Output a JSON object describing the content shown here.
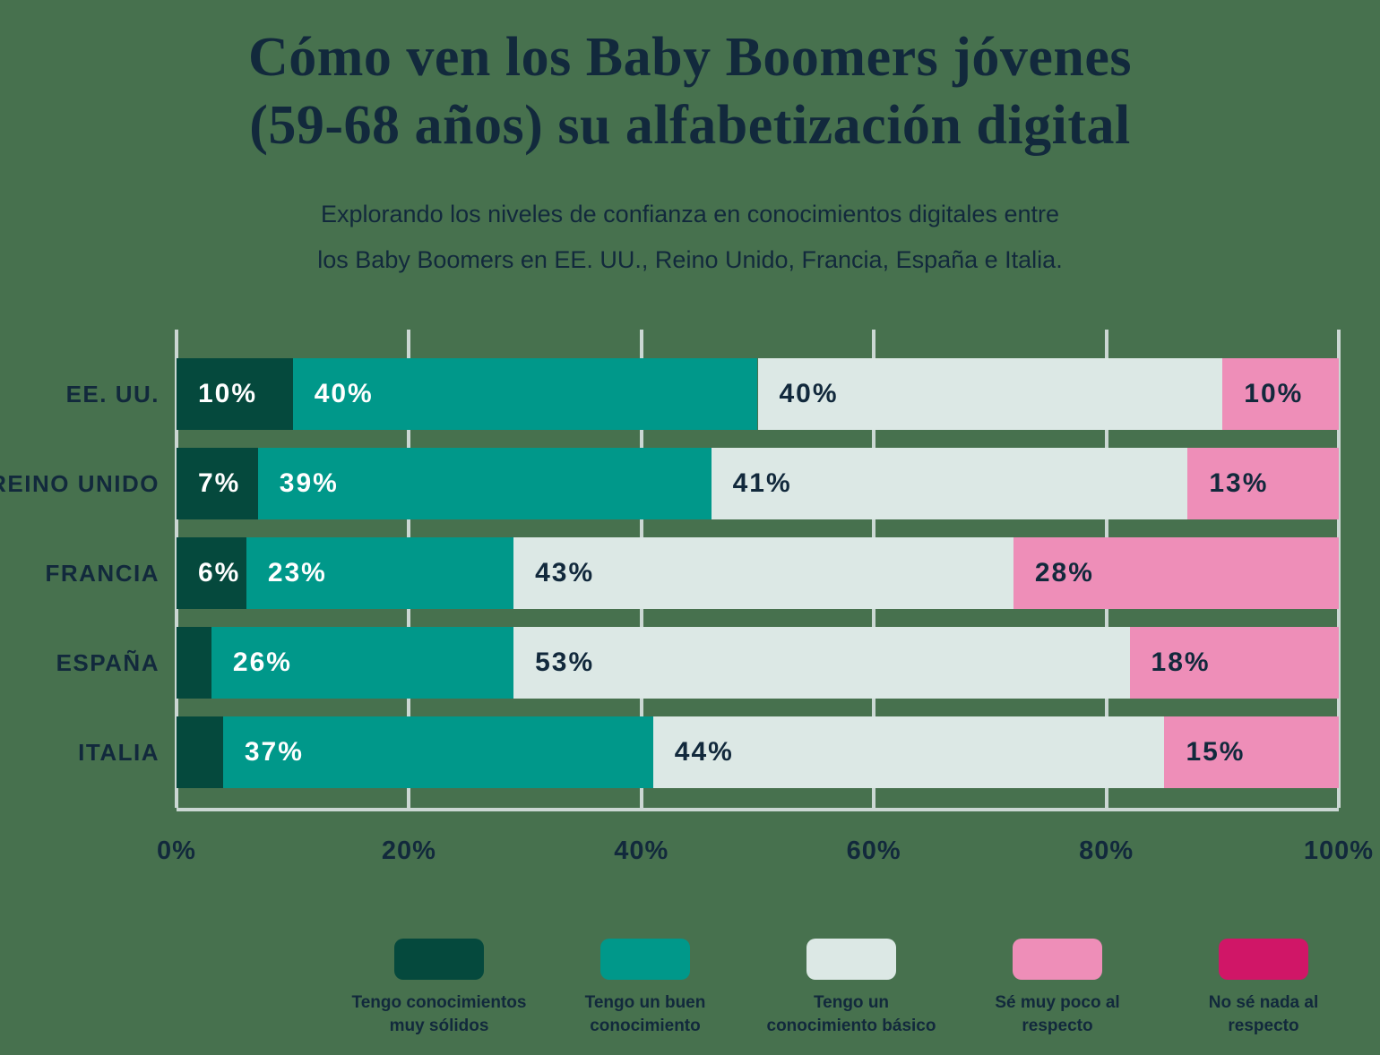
{
  "page": {
    "title_line1": "Cómo ven los Baby Boomers jóvenes",
    "title_line2": "(59-68 años) su alfabetización digital",
    "subtitle_line1": "Explorando los niveles de confianza en conocimientos digitales entre",
    "subtitle_line2": "los Baby Boomers en EE. UU., Reino Unido, Francia, España e Italia."
  },
  "colors": {
    "background": "#47714E",
    "navy_text": "#12293C",
    "white_text": "#FFFFFF",
    "gridline": "#CBD7D3",
    "very_solid": "#05493D",
    "good": "#00988A",
    "basic": "#DCE8E5",
    "very_little": "#EE8EB8",
    "nothing": "#D01667"
  },
  "chart_data": {
    "type": "bar",
    "variant": "horizontal_stacked",
    "categories": [
      "EE. UU.",
      "REINO UNIDO",
      "FRANCIA",
      "ESPAÑA",
      "ITALIA"
    ],
    "series": [
      {
        "name": "Tengo conocimientos muy sólidos",
        "color": "#05493D",
        "text_color": "#FFFFFF",
        "values": [
          10,
          7,
          6,
          3,
          4
        ],
        "labels": [
          "10%",
          "7%",
          "6%",
          "",
          ""
        ]
      },
      {
        "name": "Tengo un buen conocimiento",
        "color": "#00988A",
        "text_color": "#FFFFFF",
        "values": [
          40,
          39,
          23,
          26,
          37
        ],
        "labels": [
          "40%",
          "39%",
          "23%",
          "26%",
          "37%"
        ]
      },
      {
        "name": "Tengo un conocimiento básico",
        "color": "#DCE8E5",
        "text_color": "#12293C",
        "values": [
          40,
          41,
          43,
          53,
          44
        ],
        "labels": [
          "40%",
          "41%",
          "43%",
          "53%",
          "44%"
        ]
      },
      {
        "name": "Sé muy poco al respecto",
        "color": "#EE8EB8",
        "text_color": "#12293C",
        "values": [
          10,
          13,
          28,
          18,
          15
        ],
        "labels": [
          "10%",
          "13%",
          "28%",
          "18%",
          "15%"
        ]
      },
      {
        "name": "No sé nada al respecto",
        "color": "#D01667",
        "text_color": "#12293C",
        "values": [
          0,
          0,
          0,
          0,
          0
        ],
        "labels": [
          "",
          "",
          "",
          "",
          ""
        ]
      }
    ],
    "x_ticks": [
      "0%",
      "20%",
      "40%",
      "60%",
      "80%",
      "100%"
    ],
    "xlim": [
      0,
      100
    ],
    "grid": true,
    "legend_position": "bottom"
  },
  "legend": {
    "items": [
      {
        "color": "#05493D",
        "line1": "Tengo conocimientos",
        "line2": "muy sólidos"
      },
      {
        "color": "#00988A",
        "line1": "Tengo un buen",
        "line2": "conocimiento"
      },
      {
        "color": "#DCE8E5",
        "line1": "Tengo un",
        "line2": "conocimiento básico"
      },
      {
        "color": "#EE8EB8",
        "line1": "Sé muy poco al",
        "line2": "respecto"
      },
      {
        "color": "#D01667",
        "line1": "No sé nada al",
        "line2": "respecto"
      }
    ]
  }
}
